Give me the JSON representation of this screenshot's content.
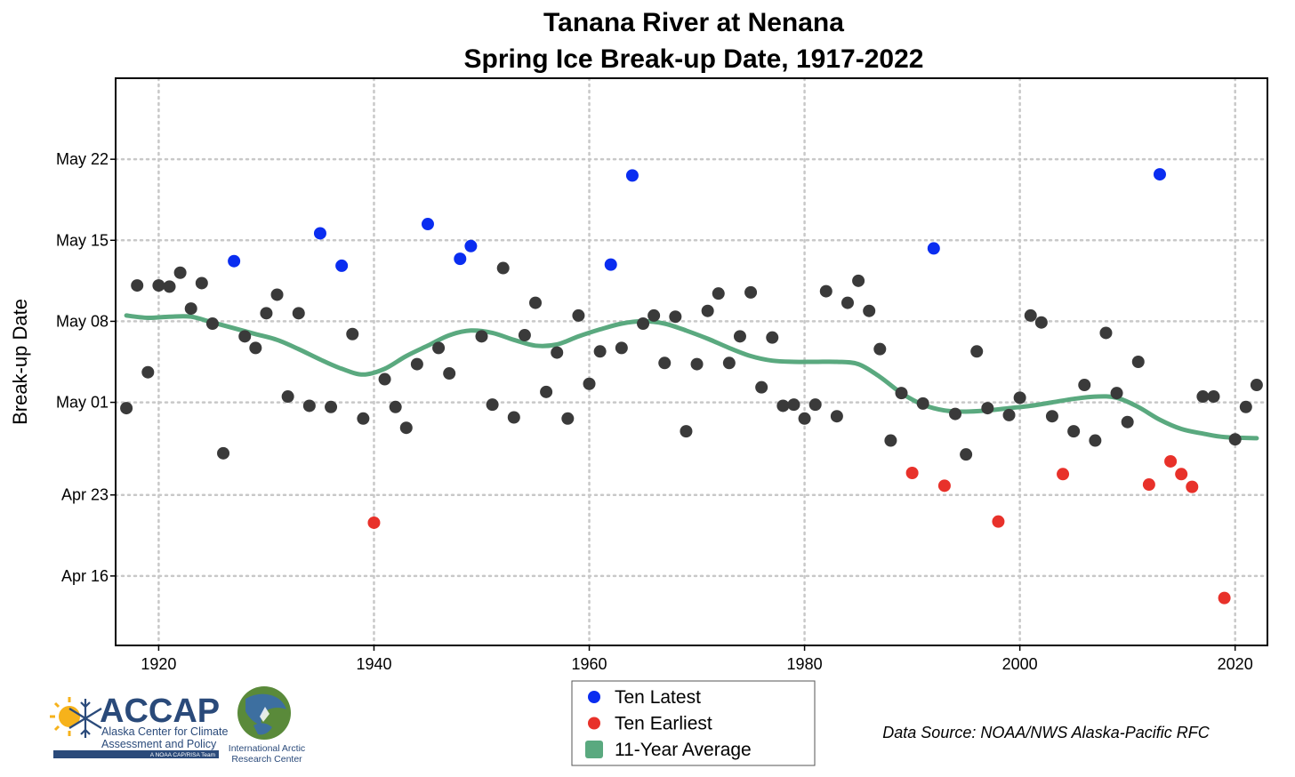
{
  "chart_data": {
    "type": "scatter",
    "title": [
      "Tanana River at Nenana",
      "Spring Ice Break-up Date, 1917-2022"
    ],
    "ylabel": "Break-up Date",
    "xlabel": "",
    "xlim": [
      1916,
      2023
    ],
    "ylim_day_of_year": [
      100,
      149
    ],
    "x_ticks": [
      1920,
      1940,
      1960,
      1980,
      2000,
      2020
    ],
    "y_ticks": [
      {
        "label": "Apr 16",
        "doy": 106
      },
      {
        "label": "Apr 23",
        "doy": 113
      },
      {
        "label": "May 01",
        "doy": 121
      },
      {
        "label": "May 08",
        "doy": 128
      },
      {
        "label": "May 15",
        "doy": 135
      },
      {
        "label": "May 22",
        "doy": 142
      }
    ],
    "grid": true,
    "legend_position": "bottom-center",
    "legend": [
      "Ten Latest",
      "Ten Earliest",
      "11-Year Average"
    ],
    "colors": {
      "latest": "#0a2df0",
      "earliest": "#e8312a",
      "normal": "#3a3a3a",
      "average": "#5aa97f"
    },
    "series": [
      {
        "name": "Ten Latest",
        "category": "latest",
        "points": [
          [
            1927,
            133.2
          ],
          [
            1935,
            135.6
          ],
          [
            1937,
            132.8
          ],
          [
            1945,
            136.4
          ],
          [
            1948,
            133.4
          ],
          [
            1949,
            134.5
          ],
          [
            1962,
            132.9
          ],
          [
            1964,
            140.6
          ],
          [
            1992,
            134.3
          ],
          [
            2013,
            140.7
          ]
        ]
      },
      {
        "name": "Ten Earliest",
        "category": "earliest",
        "points": [
          [
            1940,
            110.6
          ],
          [
            1990,
            114.9
          ],
          [
            1993,
            113.8
          ],
          [
            1998,
            110.7
          ],
          [
            2004,
            114.8
          ],
          [
            2012,
            113.9
          ],
          [
            2014,
            115.9
          ],
          [
            2015,
            114.8
          ],
          [
            2016,
            113.7
          ],
          [
            2019,
            104.1
          ]
        ]
      },
      {
        "name": "",
        "category": "normal",
        "points": [
          [
            1917,
            120.5
          ],
          [
            1918,
            131.1
          ],
          [
            1919,
            123.6
          ],
          [
            1920,
            131.1
          ],
          [
            1921,
            131.0
          ],
          [
            1922,
            132.2
          ],
          [
            1923,
            129.1
          ],
          [
            1924,
            131.3
          ],
          [
            1925,
            127.8
          ],
          [
            1926,
            116.6
          ],
          [
            1928,
            126.7
          ],
          [
            1929,
            125.7
          ],
          [
            1930,
            128.7
          ],
          [
            1931,
            130.3
          ],
          [
            1932,
            121.5
          ],
          [
            1933,
            128.7
          ],
          [
            1934,
            120.7
          ],
          [
            1936,
            120.6
          ],
          [
            1938,
            126.9
          ],
          [
            1939,
            119.6
          ],
          [
            1941,
            123.0
          ],
          [
            1942,
            120.6
          ],
          [
            1943,
            118.8
          ],
          [
            1944,
            124.3
          ],
          [
            1946,
            125.7
          ],
          [
            1947,
            123.5
          ],
          [
            1950,
            126.7
          ],
          [
            1951,
            120.8
          ],
          [
            1952,
            132.6
          ],
          [
            1953,
            119.7
          ],
          [
            1954,
            126.8
          ],
          [
            1955,
            129.6
          ],
          [
            1956,
            121.9
          ],
          [
            1957,
            125.3
          ],
          [
            1958,
            119.6
          ],
          [
            1959,
            128.5
          ],
          [
            1960,
            122.6
          ],
          [
            1961,
            125.4
          ],
          [
            1963,
            125.7
          ],
          [
            1965,
            127.8
          ],
          [
            1966,
            128.5
          ],
          [
            1967,
            124.4
          ],
          [
            1968,
            128.4
          ],
          [
            1969,
            118.5
          ],
          [
            1970,
            124.3
          ],
          [
            1971,
            128.9
          ],
          [
            1972,
            130.4
          ],
          [
            1973,
            124.4
          ],
          [
            1974,
            126.7
          ],
          [
            1975,
            130.5
          ],
          [
            1976,
            122.3
          ],
          [
            1977,
            126.6
          ],
          [
            1978,
            120.7
          ],
          [
            1979,
            120.8
          ],
          [
            1980,
            119.6
          ],
          [
            1981,
            120.8
          ],
          [
            1982,
            130.6
          ],
          [
            1983,
            119.8
          ],
          [
            1984,
            129.6
          ],
          [
            1985,
            131.5
          ],
          [
            1986,
            128.9
          ],
          [
            1987,
            125.6
          ],
          [
            1988,
            117.7
          ],
          [
            1989,
            121.8
          ],
          [
            1991,
            120.9
          ],
          [
            1994,
            120.0
          ],
          [
            1995,
            116.5
          ],
          [
            1996,
            125.4
          ],
          [
            1997,
            120.5
          ],
          [
            1999,
            119.9
          ],
          [
            2000,
            121.4
          ],
          [
            2001,
            128.5
          ],
          [
            2002,
            127.9
          ],
          [
            2003,
            119.8
          ],
          [
            2005,
            118.5
          ],
          [
            2006,
            122.5
          ],
          [
            2007,
            117.7
          ],
          [
            2008,
            127.0
          ],
          [
            2009,
            121.8
          ],
          [
            2010,
            119.3
          ],
          [
            2011,
            124.5
          ],
          [
            2017,
            121.5
          ],
          [
            2018,
            121.5
          ],
          [
            2020,
            117.8
          ],
          [
            2021,
            120.6
          ],
          [
            2022,
            122.5
          ]
        ]
      },
      {
        "name": "11-Year Average",
        "category": "average",
        "type": "line",
        "points": [
          [
            1917,
            128.5
          ],
          [
            1919,
            128.3
          ],
          [
            1921,
            128.4
          ],
          [
            1923,
            128.4
          ],
          [
            1925,
            127.9
          ],
          [
            1927,
            127.4
          ],
          [
            1929,
            126.9
          ],
          [
            1931,
            126.4
          ],
          [
            1933,
            125.6
          ],
          [
            1935,
            124.7
          ],
          [
            1937,
            123.9
          ],
          [
            1939,
            123.4
          ],
          [
            1941,
            123.9
          ],
          [
            1943,
            125.0
          ],
          [
            1945,
            125.9
          ],
          [
            1947,
            126.8
          ],
          [
            1949,
            127.2
          ],
          [
            1951,
            127.0
          ],
          [
            1953,
            126.4
          ],
          [
            1955,
            125.9
          ],
          [
            1957,
            126.0
          ],
          [
            1959,
            126.7
          ],
          [
            1961,
            127.3
          ],
          [
            1963,
            127.8
          ],
          [
            1965,
            128.0
          ],
          [
            1967,
            127.8
          ],
          [
            1969,
            127.2
          ],
          [
            1971,
            126.5
          ],
          [
            1973,
            125.7
          ],
          [
            1975,
            125.0
          ],
          [
            1977,
            124.6
          ],
          [
            1979,
            124.5
          ],
          [
            1981,
            124.5
          ],
          [
            1983,
            124.5
          ],
          [
            1985,
            124.3
          ],
          [
            1987,
            123.2
          ],
          [
            1989,
            121.8
          ],
          [
            1991,
            120.8
          ],
          [
            1993,
            120.3
          ],
          [
            1995,
            120.2
          ],
          [
            1997,
            120.3
          ],
          [
            1999,
            120.5
          ],
          [
            2001,
            120.7
          ],
          [
            2003,
            121.0
          ],
          [
            2005,
            121.3
          ],
          [
            2007,
            121.5
          ],
          [
            2009,
            121.4
          ],
          [
            2011,
            120.6
          ],
          [
            2013,
            119.5
          ],
          [
            2015,
            118.7
          ],
          [
            2017,
            118.3
          ],
          [
            2019,
            118.0
          ],
          [
            2022,
            117.9
          ]
        ]
      }
    ]
  },
  "legend_items": [
    {
      "label": "Ten Latest",
      "color": "#0a2df0",
      "marker": "dot"
    },
    {
      "label": "Ten Earliest",
      "color": "#e8312a",
      "marker": "dot"
    },
    {
      "label": "11-Year Average",
      "color": "#5aa97f",
      "marker": "square"
    }
  ],
  "source": "Data Source: NOAA/NWS Alaska-Pacific RFC",
  "logo_accap": {
    "name": "ACCAP",
    "lines": [
      "Alaska Center for Climate",
      "Assessment and Policy"
    ],
    "tag": "A NOAA CAP/RISA Team",
    "icon": "sun-snowflake-icon"
  },
  "logo_iarc": {
    "lines": [
      "International Arctic",
      "Research Center"
    ],
    "icon": "globe-icon"
  }
}
